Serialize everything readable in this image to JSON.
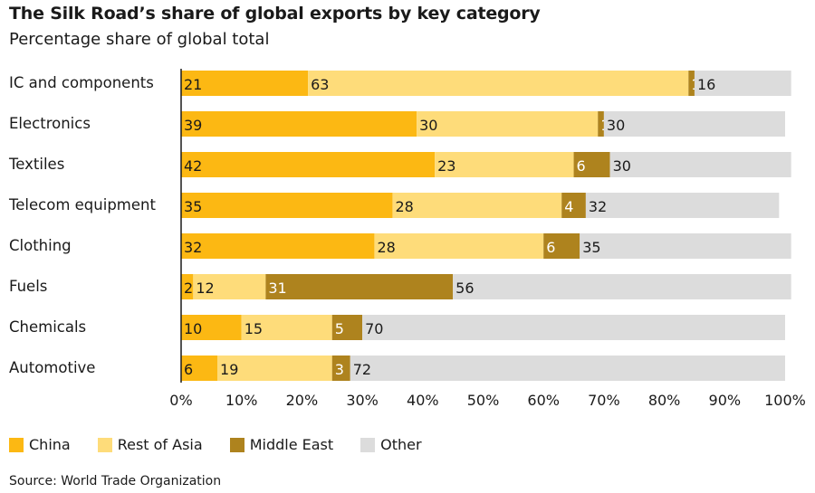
{
  "title": "The Silk Road’s share of global exports by key category",
  "subtitle": "Percentage share of global total",
  "source": "Source: World Trade Organization",
  "chart_data": {
    "type": "bar",
    "orientation": "horizontal",
    "stacked": true,
    "categories": [
      "IC and components",
      "Electronics",
      "Textiles",
      "Telecom equipment",
      "Clothing",
      "Fuels",
      "Chemicals",
      "Automotive"
    ],
    "series": [
      {
        "name": "China",
        "color": "#fcb813",
        "label_color": "#1a1a1a",
        "values": [
          21,
          39,
          42,
          35,
          32,
          2,
          10,
          6
        ]
      },
      {
        "name": "Rest of Asia",
        "color": "#fedc7a",
        "label_color": "#1a1a1a",
        "values": [
          63,
          30,
          23,
          28,
          28,
          12,
          15,
          19
        ]
      },
      {
        "name": "Middle East",
        "color": "#ae831e",
        "label_color": "#ffffff",
        "values": [
          1,
          1,
          6,
          4,
          6,
          31,
          5,
          3
        ]
      },
      {
        "name": "Other",
        "color": "#dcdcdc",
        "label_color": "#1a1a1a",
        "values": [
          16,
          30,
          30,
          32,
          35,
          56,
          70,
          72
        ]
      }
    ],
    "xlim": [
      0,
      100
    ],
    "xticks": [
      "0%",
      "10%",
      "20%",
      "30%",
      "40%",
      "50%",
      "60%",
      "70%",
      "80%",
      "90%",
      "100%"
    ],
    "grid": false,
    "legend_position": "bottom-left"
  }
}
